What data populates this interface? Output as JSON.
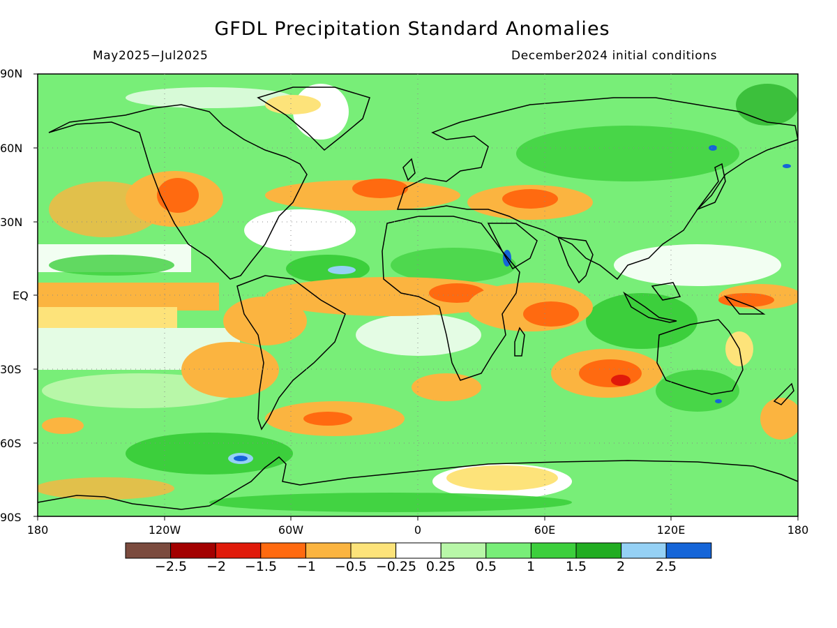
{
  "header": {
    "title": "GFDL Precipitation Standard Anomalies",
    "period": "May2025-Jul2025",
    "init": "December2024 initial conditions"
  },
  "axes": {
    "lat_labels": [
      "90N",
      "60N",
      "30N",
      "EQ",
      "30S",
      "60S",
      "90S"
    ],
    "lon_labels": [
      "180",
      "120W",
      "60W",
      "0",
      "60E",
      "120E",
      "180"
    ]
  },
  "colorbar": {
    "labels": [
      "-2.5",
      "-2",
      "-1.5",
      "-1",
      "-0.5",
      "-0.25",
      "0.25",
      "0.5",
      "1",
      "1.5",
      "2",
      "2.5"
    ],
    "colors": [
      "#7b4b3e",
      "#a30000",
      "#e01a0a",
      "#ff6a10",
      "#fbb440",
      "#fde37a",
      "#ffffff",
      "#b8f7a8",
      "#78ee78",
      "#3ccf3c",
      "#22ad22",
      "#95d1f5",
      "#1565d8"
    ]
  },
  "map_colors": {
    "ocean_neutral": "#ffffff",
    "wet_light": "#b8f7a8",
    "wet": "#78ee78",
    "wet_strong": "#3ccf3c",
    "wet_very": "#22ad22",
    "dry_light": "#fde37a",
    "dry": "#fbb440",
    "dry_strong": "#ff6a10",
    "dry_very": "#e01a0a",
    "extreme_wet": "#95d1f5",
    "extreme_wet_strong": "#1565d8"
  }
}
